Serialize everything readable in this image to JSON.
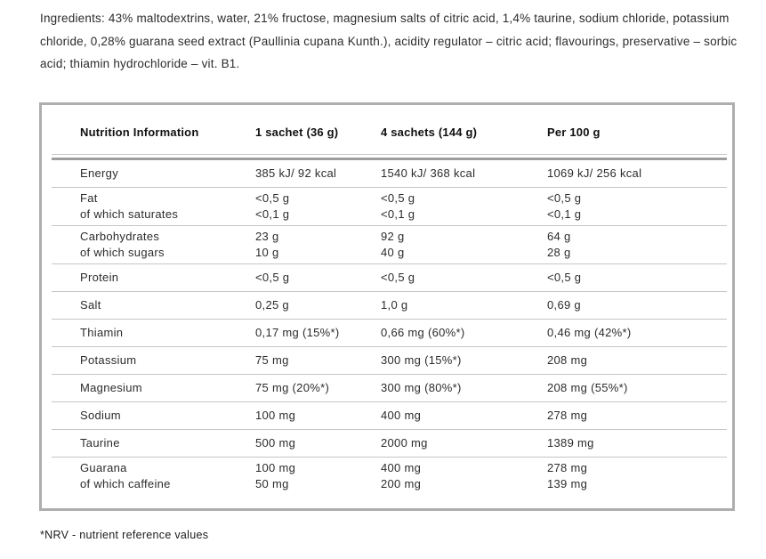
{
  "ingredients": {
    "lines": [
      "Ingredients: 43% maltodextrins, water, 21% fructose, magnesium salts of citric acid, 1,4% taurine, sodium chloride, potassium",
      "chloride, 0,28% guarana seed extract (Paullinia cupana Kunth.), acidity regulator – citric acid; flavourings, preservative – sorbic",
      "acid; thiamin hydrochloride – vit. B1."
    ]
  },
  "nutrition_table": {
    "headers": [
      "Nutrition Information",
      "1 sachet (36 g)",
      "4 sachets (144 g)",
      "Per 100 g"
    ],
    "rows": [
      {
        "label": "Energy",
        "sublabel": "",
        "values": [
          "385 kJ/ 92 kcal",
          "1540 kJ/ 368 kcal",
          "1069 kJ/ 256 kcal"
        ],
        "subvalues": []
      },
      {
        "label": "Fat",
        "sublabel": "of which saturates",
        "values": [
          "<0,5 g",
          "<0,5 g",
          "<0,5 g"
        ],
        "subvalues": [
          "<0,1 g",
          "<0,1 g",
          "<0,1 g"
        ]
      },
      {
        "label": "Carbohydrates",
        "sublabel": "of which sugars",
        "values": [
          "23 g",
          "92 g",
          "64 g"
        ],
        "subvalues": [
          "10 g",
          "40 g",
          "28 g"
        ]
      },
      {
        "label": "Protein",
        "sublabel": "",
        "values": [
          "<0,5 g",
          "<0,5 g",
          "<0,5 g"
        ],
        "subvalues": []
      },
      {
        "label": "Salt",
        "sublabel": "",
        "values": [
          "0,25 g",
          "1,0 g",
          "0,69 g"
        ],
        "subvalues": []
      },
      {
        "label": "Thiamin",
        "sublabel": "",
        "values": [
          "0,17 mg (15%*)",
          "0,66 mg (60%*)",
          "0,46 mg (42%*)"
        ],
        "subvalues": []
      },
      {
        "label": "Potassium",
        "sublabel": "",
        "values": [
          "75 mg",
          "300 mg (15%*)",
          "208 mg"
        ],
        "subvalues": []
      },
      {
        "label": "Magnesium",
        "sublabel": "",
        "values": [
          "75 mg (20%*)",
          "300 mg (80%*)",
          "208 mg (55%*)"
        ],
        "subvalues": []
      },
      {
        "label": "Sodium",
        "sublabel": "",
        "values": [
          "100 mg",
          "400 mg",
          "278 mg"
        ],
        "subvalues": []
      },
      {
        "label": "Taurine",
        "sublabel": "",
        "values": [
          "500 mg",
          "2000 mg",
          "1389 mg"
        ],
        "subvalues": []
      },
      {
        "label": "Guarana",
        "sublabel": "of which caffeine",
        "values": [
          "100 mg",
          "400 mg",
          "278 mg"
        ],
        "subvalues": [
          "50 mg",
          "200 mg",
          "139 mg"
        ]
      }
    ]
  },
  "footnote": "*NRV - nutrient reference values",
  "colors": {
    "text": "#2c2c2c",
    "header_text": "#101010",
    "table_border": "#aeaeae",
    "row_separator": "#c5c5c5",
    "header_divider_dark": "#9e9e9e",
    "header_divider_light": "#cacaca",
    "background": "#ffffff"
  }
}
